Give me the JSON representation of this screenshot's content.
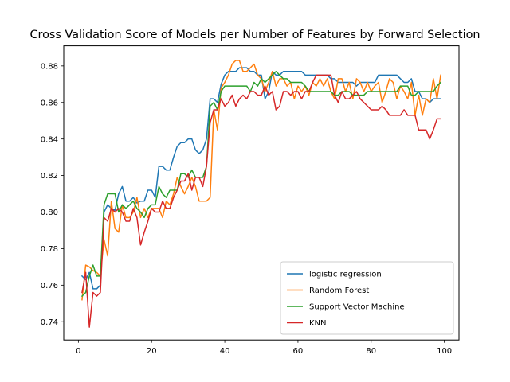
{
  "chart_data": {
    "type": "line",
    "title": "Cross Validation Score of Models per Number of Features by Forward Selection",
    "xlabel": "",
    "ylabel": "",
    "xlim": [
      -4,
      104
    ],
    "ylim": [
      0.73,
      0.891
    ],
    "xticks": [
      0,
      20,
      40,
      60,
      80,
      100
    ],
    "yticks": [
      0.74,
      0.76,
      0.78,
      0.8,
      0.82,
      0.84,
      0.86,
      0.88
    ],
    "ytick_format": 2,
    "grid": false,
    "legend_position": "lower right",
    "x": [
      1,
      2,
      3,
      4,
      5,
      6,
      7,
      8,
      9,
      10,
      11,
      12,
      13,
      14,
      15,
      16,
      17,
      18,
      19,
      20,
      21,
      22,
      23,
      24,
      25,
      26,
      27,
      28,
      29,
      30,
      31,
      32,
      33,
      34,
      35,
      36,
      37,
      38,
      39,
      40,
      41,
      42,
      43,
      44,
      45,
      46,
      47,
      48,
      49,
      50,
      51,
      52,
      53,
      54,
      55,
      56,
      57,
      58,
      59,
      60,
      61,
      62,
      63,
      64,
      65,
      66,
      67,
      68,
      69,
      70,
      71,
      72,
      73,
      74,
      75,
      76,
      77,
      78,
      79,
      80,
      81,
      82,
      83,
      84,
      85,
      86,
      87,
      88,
      89,
      90,
      91,
      92,
      93,
      94,
      95,
      96,
      97,
      98,
      99
    ],
    "series": [
      {
        "name": "logistic regression",
        "color": "#1f77b4",
        "values": [
          0.765,
          0.763,
          0.767,
          0.758,
          0.758,
          0.76,
          0.8,
          0.804,
          0.802,
          0.801,
          0.81,
          0.814,
          0.806,
          0.806,
          0.808,
          0.805,
          0.806,
          0.806,
          0.812,
          0.812,
          0.808,
          0.825,
          0.825,
          0.823,
          0.823,
          0.83,
          0.836,
          0.838,
          0.838,
          0.84,
          0.84,
          0.834,
          0.832,
          0.834,
          0.84,
          0.862,
          0.862,
          0.86,
          0.87,
          0.875,
          0.877,
          0.877,
          0.877,
          0.879,
          0.879,
          0.879,
          0.877,
          0.877,
          0.875,
          0.875,
          0.862,
          0.866,
          0.877,
          0.875,
          0.875,
          0.877,
          0.877,
          0.877,
          0.877,
          0.877,
          0.877,
          0.875,
          0.875,
          0.875,
          0.875,
          0.875,
          0.875,
          0.875,
          0.873,
          0.873,
          0.871,
          0.871,
          0.871,
          0.871,
          0.871,
          0.869,
          0.871,
          0.871,
          0.871,
          0.871,
          0.871,
          0.875,
          0.875,
          0.875,
          0.875,
          0.875,
          0.875,
          0.873,
          0.871,
          0.871,
          0.873,
          0.866,
          0.866,
          0.862,
          0.862,
          0.86,
          0.862,
          0.862,
          0.862
        ]
      },
      {
        "name": "Random Forest",
        "color": "#ff7f0e",
        "values": [
          0.752,
          0.771,
          0.77,
          0.768,
          0.767,
          0.765,
          0.785,
          0.776,
          0.806,
          0.791,
          0.789,
          0.804,
          0.797,
          0.797,
          0.8,
          0.808,
          0.797,
          0.802,
          0.797,
          0.802,
          0.802,
          0.802,
          0.797,
          0.806,
          0.804,
          0.81,
          0.819,
          0.814,
          0.81,
          0.814,
          0.819,
          0.814,
          0.806,
          0.806,
          0.806,
          0.808,
          0.856,
          0.845,
          0.868,
          0.871,
          0.875,
          0.881,
          0.883,
          0.883,
          0.877,
          0.877,
          0.879,
          0.881,
          0.875,
          0.873,
          0.866,
          0.871,
          0.877,
          0.869,
          0.873,
          0.873,
          0.869,
          0.871,
          0.862,
          0.869,
          0.866,
          0.869,
          0.864,
          0.871,
          0.869,
          0.873,
          0.869,
          0.873,
          0.866,
          0.862,
          0.873,
          0.873,
          0.866,
          0.871,
          0.862,
          0.873,
          0.871,
          0.866,
          0.871,
          0.866,
          0.869,
          0.871,
          0.86,
          0.866,
          0.873,
          0.871,
          0.862,
          0.869,
          0.866,
          0.862,
          0.871,
          0.853,
          0.864,
          0.853,
          0.862,
          0.86,
          0.873,
          0.862,
          0.875
        ]
      },
      {
        "name": "Support Vector Machine",
        "color": "#2ca02c",
        "values": [
          0.754,
          0.756,
          0.765,
          0.771,
          0.765,
          0.765,
          0.804,
          0.81,
          0.81,
          0.81,
          0.8,
          0.804,
          0.802,
          0.804,
          0.806,
          0.802,
          0.8,
          0.797,
          0.802,
          0.804,
          0.804,
          0.814,
          0.81,
          0.808,
          0.812,
          0.812,
          0.812,
          0.821,
          0.821,
          0.819,
          0.823,
          0.819,
          0.819,
          0.819,
          0.825,
          0.858,
          0.86,
          0.856,
          0.866,
          0.869,
          0.869,
          0.869,
          0.869,
          0.869,
          0.869,
          0.869,
          0.866,
          0.871,
          0.869,
          0.873,
          0.871,
          0.873,
          0.875,
          0.877,
          0.875,
          0.873,
          0.873,
          0.871,
          0.871,
          0.871,
          0.871,
          0.869,
          0.866,
          0.866,
          0.866,
          0.866,
          0.866,
          0.866,
          0.866,
          0.864,
          0.864,
          0.866,
          0.866,
          0.866,
          0.864,
          0.864,
          0.864,
          0.864,
          0.866,
          0.866,
          0.866,
          0.866,
          0.866,
          0.866,
          0.866,
          0.866,
          0.866,
          0.869,
          0.869,
          0.869,
          0.864,
          0.864,
          0.866,
          0.866,
          0.866,
          0.866,
          0.866,
          0.869,
          0.871
        ]
      },
      {
        "name": "KNN",
        "color": "#d62728",
        "values": [
          0.756,
          0.767,
          0.737,
          0.756,
          0.754,
          0.756,
          0.797,
          0.795,
          0.802,
          0.8,
          0.802,
          0.8,
          0.795,
          0.795,
          0.802,
          0.797,
          0.782,
          0.789,
          0.795,
          0.802,
          0.8,
          0.8,
          0.806,
          0.802,
          0.802,
          0.808,
          0.812,
          0.817,
          0.817,
          0.821,
          0.812,
          0.819,
          0.819,
          0.814,
          0.825,
          0.849,
          0.856,
          0.856,
          0.862,
          0.858,
          0.86,
          0.864,
          0.858,
          0.862,
          0.864,
          0.862,
          0.866,
          0.866,
          0.864,
          0.864,
          0.869,
          0.864,
          0.866,
          0.856,
          0.858,
          0.866,
          0.866,
          0.864,
          0.866,
          0.866,
          0.862,
          0.866,
          0.866,
          0.871,
          0.875,
          0.875,
          0.875,
          0.875,
          0.875,
          0.864,
          0.86,
          0.866,
          0.862,
          0.862,
          0.864,
          0.866,
          0.862,
          0.86,
          0.858,
          0.856,
          0.856,
          0.856,
          0.858,
          0.856,
          0.853,
          0.853,
          0.853,
          0.853,
          0.856,
          0.853,
          0.853,
          0.853,
          0.845,
          0.845,
          0.845,
          0.84,
          0.845,
          0.851,
          0.851
        ]
      }
    ]
  }
}
